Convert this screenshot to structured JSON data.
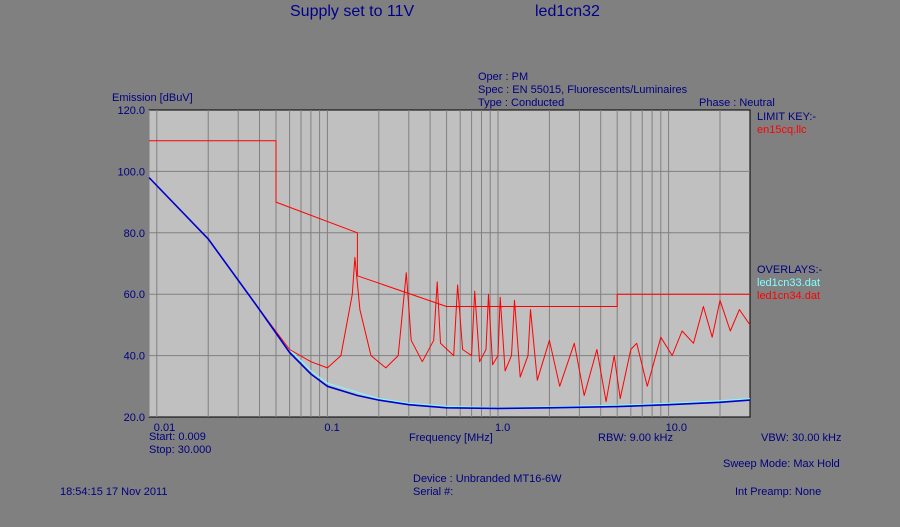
{
  "header": {
    "title_left": "Supply set to 11V",
    "title_right": "led1cn32",
    "oper": "Oper : PM",
    "spec": "Spec : EN 55015, Fluorescents/Luminaires",
    "type": "Type : Conducted",
    "phase": "Phase : Neutral"
  },
  "legend": {
    "limit_key_label": "LIMIT KEY:-",
    "limit_file": "en15cq.llc",
    "overlays_label": "OVERLAYS:-",
    "overlay_1": "led1cn33.dat",
    "overlay_2": "led1cn34.dat"
  },
  "footer": {
    "start": "Start: 0.009",
    "stop": "Stop: 30.000",
    "rbw": "RBW: 9.00 kHz",
    "vbw": "VBW: 30.00 kHz",
    "sweep_mode": "Sweep Mode: Max Hold",
    "device": "Device : Unbranded MT16-6W",
    "serial": "Serial #:",
    "timestamp": "18:54:15 17 Nov 2011",
    "int_preamp": "Int Preamp: None"
  },
  "colors": {
    "background": "#808080",
    "plot_area": "#c0c0c0",
    "grid": "#808080",
    "text": "#000080",
    "limit": "#ff0000",
    "trace_main": "#0000cd",
    "overlay_1": "#80ffff",
    "overlay_2": "#ff0000"
  },
  "chart_data": {
    "type": "line",
    "xlabel": "Frequency [MHz]",
    "ylabel": "Emission [dBuV]",
    "x_scale": "log",
    "xlim": [
      0.009,
      30
    ],
    "ylim": [
      20,
      120
    ],
    "x_ticks": [
      0.01,
      0.1,
      1.0,
      10.0
    ],
    "x_tick_labels": [
      "0.01",
      "0.1",
      "1.0",
      "10.0"
    ],
    "y_ticks": [
      20,
      40,
      60,
      80,
      100,
      120
    ],
    "y_tick_labels": [
      "20.0",
      "40.0",
      "60.0",
      "80.0",
      "100.0",
      "120.0"
    ],
    "grid": true,
    "series": [
      {
        "name": "en15cq.llc",
        "role": "limit",
        "color": "#ff0000",
        "points": [
          [
            0.009,
            110
          ],
          [
            0.05,
            110
          ],
          [
            0.05,
            90
          ],
          [
            0.15,
            80
          ],
          [
            0.15,
            66
          ],
          [
            0.5,
            56
          ],
          [
            5,
            56
          ],
          [
            5,
            60
          ],
          [
            30,
            60
          ]
        ]
      },
      {
        "name": "led1cn33.dat",
        "role": "overlay",
        "color": "#80ffff",
        "points": [
          [
            0.009,
            98
          ],
          [
            0.02,
            78
          ],
          [
            0.04,
            55
          ],
          [
            0.06,
            42
          ],
          [
            0.08,
            35
          ],
          [
            0.1,
            31
          ],
          [
            0.15,
            28
          ],
          [
            0.2,
            26
          ],
          [
            0.3,
            24.5
          ],
          [
            0.5,
            23.5
          ],
          [
            1,
            23
          ],
          [
            2,
            23.3
          ],
          [
            5,
            23.8
          ],
          [
            10,
            24.5
          ],
          [
            20,
            25.3
          ],
          [
            30,
            26
          ]
        ]
      },
      {
        "name": "led1cn34.dat",
        "role": "overlay",
        "color": "#ff0000",
        "points": [
          [
            0.009,
            98
          ],
          [
            0.02,
            78
          ],
          [
            0.04,
            55
          ],
          [
            0.06,
            42
          ],
          [
            0.08,
            38
          ],
          [
            0.1,
            36
          ],
          [
            0.12,
            40
          ],
          [
            0.14,
            60
          ],
          [
            0.145,
            72
          ],
          [
            0.155,
            55
          ],
          [
            0.18,
            40
          ],
          [
            0.22,
            36
          ],
          [
            0.26,
            40
          ],
          [
            0.29,
            67
          ],
          [
            0.31,
            45
          ],
          [
            0.36,
            38
          ],
          [
            0.42,
            45
          ],
          [
            0.44,
            64
          ],
          [
            0.46,
            44
          ],
          [
            0.55,
            40
          ],
          [
            0.58,
            63
          ],
          [
            0.62,
            42
          ],
          [
            0.7,
            40
          ],
          [
            0.73,
            61
          ],
          [
            0.78,
            38
          ],
          [
            0.85,
            42
          ],
          [
            0.88,
            60
          ],
          [
            0.93,
            37
          ],
          [
            1.0,
            40
          ],
          [
            1.03,
            59
          ],
          [
            1.1,
            35
          ],
          [
            1.2,
            40
          ],
          [
            1.25,
            58
          ],
          [
            1.35,
            33
          ],
          [
            1.5,
            40
          ],
          [
            1.55,
            55
          ],
          [
            1.7,
            32
          ],
          [
            2.0,
            45
          ],
          [
            2.3,
            30
          ],
          [
            2.8,
            44
          ],
          [
            3.2,
            27
          ],
          [
            3.8,
            42
          ],
          [
            4.3,
            25
          ],
          [
            4.8,
            40
          ],
          [
            5.2,
            26
          ],
          [
            6.0,
            42
          ],
          [
            6.5,
            44
          ],
          [
            7.5,
            30
          ],
          [
            9.0,
            46
          ],
          [
            10.5,
            40
          ],
          [
            12.0,
            48
          ],
          [
            14.0,
            44
          ],
          [
            16.0,
            56
          ],
          [
            18.0,
            46
          ],
          [
            20.0,
            58
          ],
          [
            23.0,
            48
          ],
          [
            26.0,
            55
          ],
          [
            30.0,
            50
          ]
        ]
      },
      {
        "name": "led1cn32",
        "role": "trace",
        "color": "#0000cd",
        "points": [
          [
            0.009,
            98
          ],
          [
            0.02,
            78
          ],
          [
            0.04,
            55
          ],
          [
            0.06,
            41
          ],
          [
            0.08,
            34
          ],
          [
            0.1,
            30
          ],
          [
            0.15,
            27
          ],
          [
            0.2,
            25.5
          ],
          [
            0.3,
            24
          ],
          [
            0.5,
            23
          ],
          [
            1,
            22.8
          ],
          [
            2,
            23
          ],
          [
            5,
            23.4
          ],
          [
            10,
            24
          ],
          [
            20,
            24.8
          ],
          [
            30,
            25.5
          ]
        ]
      }
    ]
  }
}
